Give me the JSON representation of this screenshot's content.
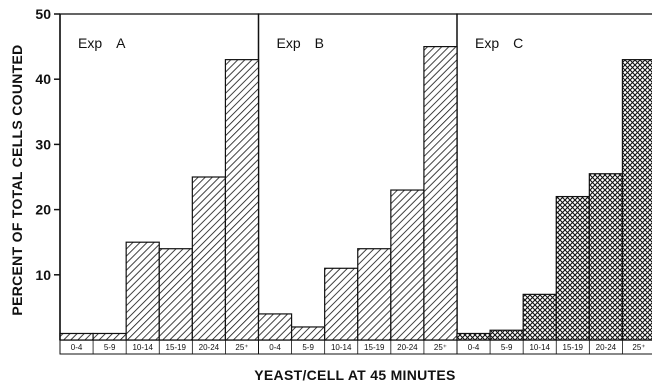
{
  "chart_data": {
    "type": "bar",
    "ylabel": "PERCENT OF TOTAL CELLS COUNTED",
    "xlabel": "YEAST/CELL AT 45 MINUTES",
    "ylim": [
      0,
      50
    ],
    "yticks": [
      10,
      20,
      30,
      40,
      50
    ],
    "categories": [
      "0-4",
      "5-9",
      "10-14",
      "15-19",
      "20-24",
      "25⁺"
    ],
    "panels": [
      {
        "exp_label": "Exp",
        "exp_letter": "A",
        "pattern": "diagonal-hatch",
        "values": [
          1,
          1,
          15,
          14,
          25,
          43
        ]
      },
      {
        "exp_label": "Exp",
        "exp_letter": "B",
        "pattern": "diagonal-hatch",
        "values": [
          4,
          2,
          11,
          14,
          23,
          45
        ]
      },
      {
        "exp_label": "Exp",
        "exp_letter": "C",
        "pattern": "cross-hatch",
        "values": [
          1,
          1.5,
          7,
          22,
          25.5,
          43
        ]
      }
    ],
    "grid": false,
    "legend": "none"
  }
}
